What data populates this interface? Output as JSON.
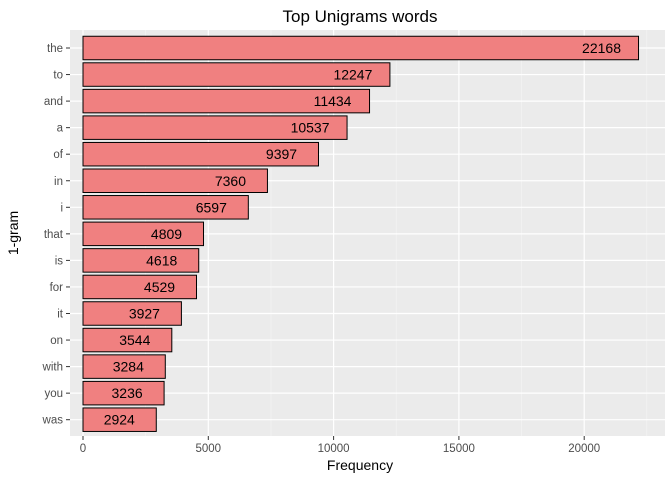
{
  "chart_data": {
    "type": "bar",
    "orientation": "horizontal",
    "title": "Top Unigrams words",
    "xlabel": "Frequency",
    "ylabel": "1-gram",
    "categories": [
      "the",
      "to",
      "and",
      "a",
      "of",
      "in",
      "i",
      "that",
      "is",
      "for",
      "it",
      "on",
      "with",
      "you",
      "was"
    ],
    "values": [
      22168,
      12247,
      11434,
      10537,
      9397,
      7360,
      6597,
      4809,
      4618,
      4529,
      3927,
      3544,
      3284,
      3236,
      2924
    ],
    "xlim": [
      0,
      23300
    ],
    "xticks": [
      0,
      5000,
      10000,
      15000,
      20000
    ],
    "grid": true,
    "legend": "none",
    "colors": {
      "bar_fill": "#f08080",
      "bar_stroke": "#000000",
      "panel_bg": "#ebebeb",
      "grid_major": "#ffffff",
      "grid_minor": "#f5f5f5"
    }
  }
}
